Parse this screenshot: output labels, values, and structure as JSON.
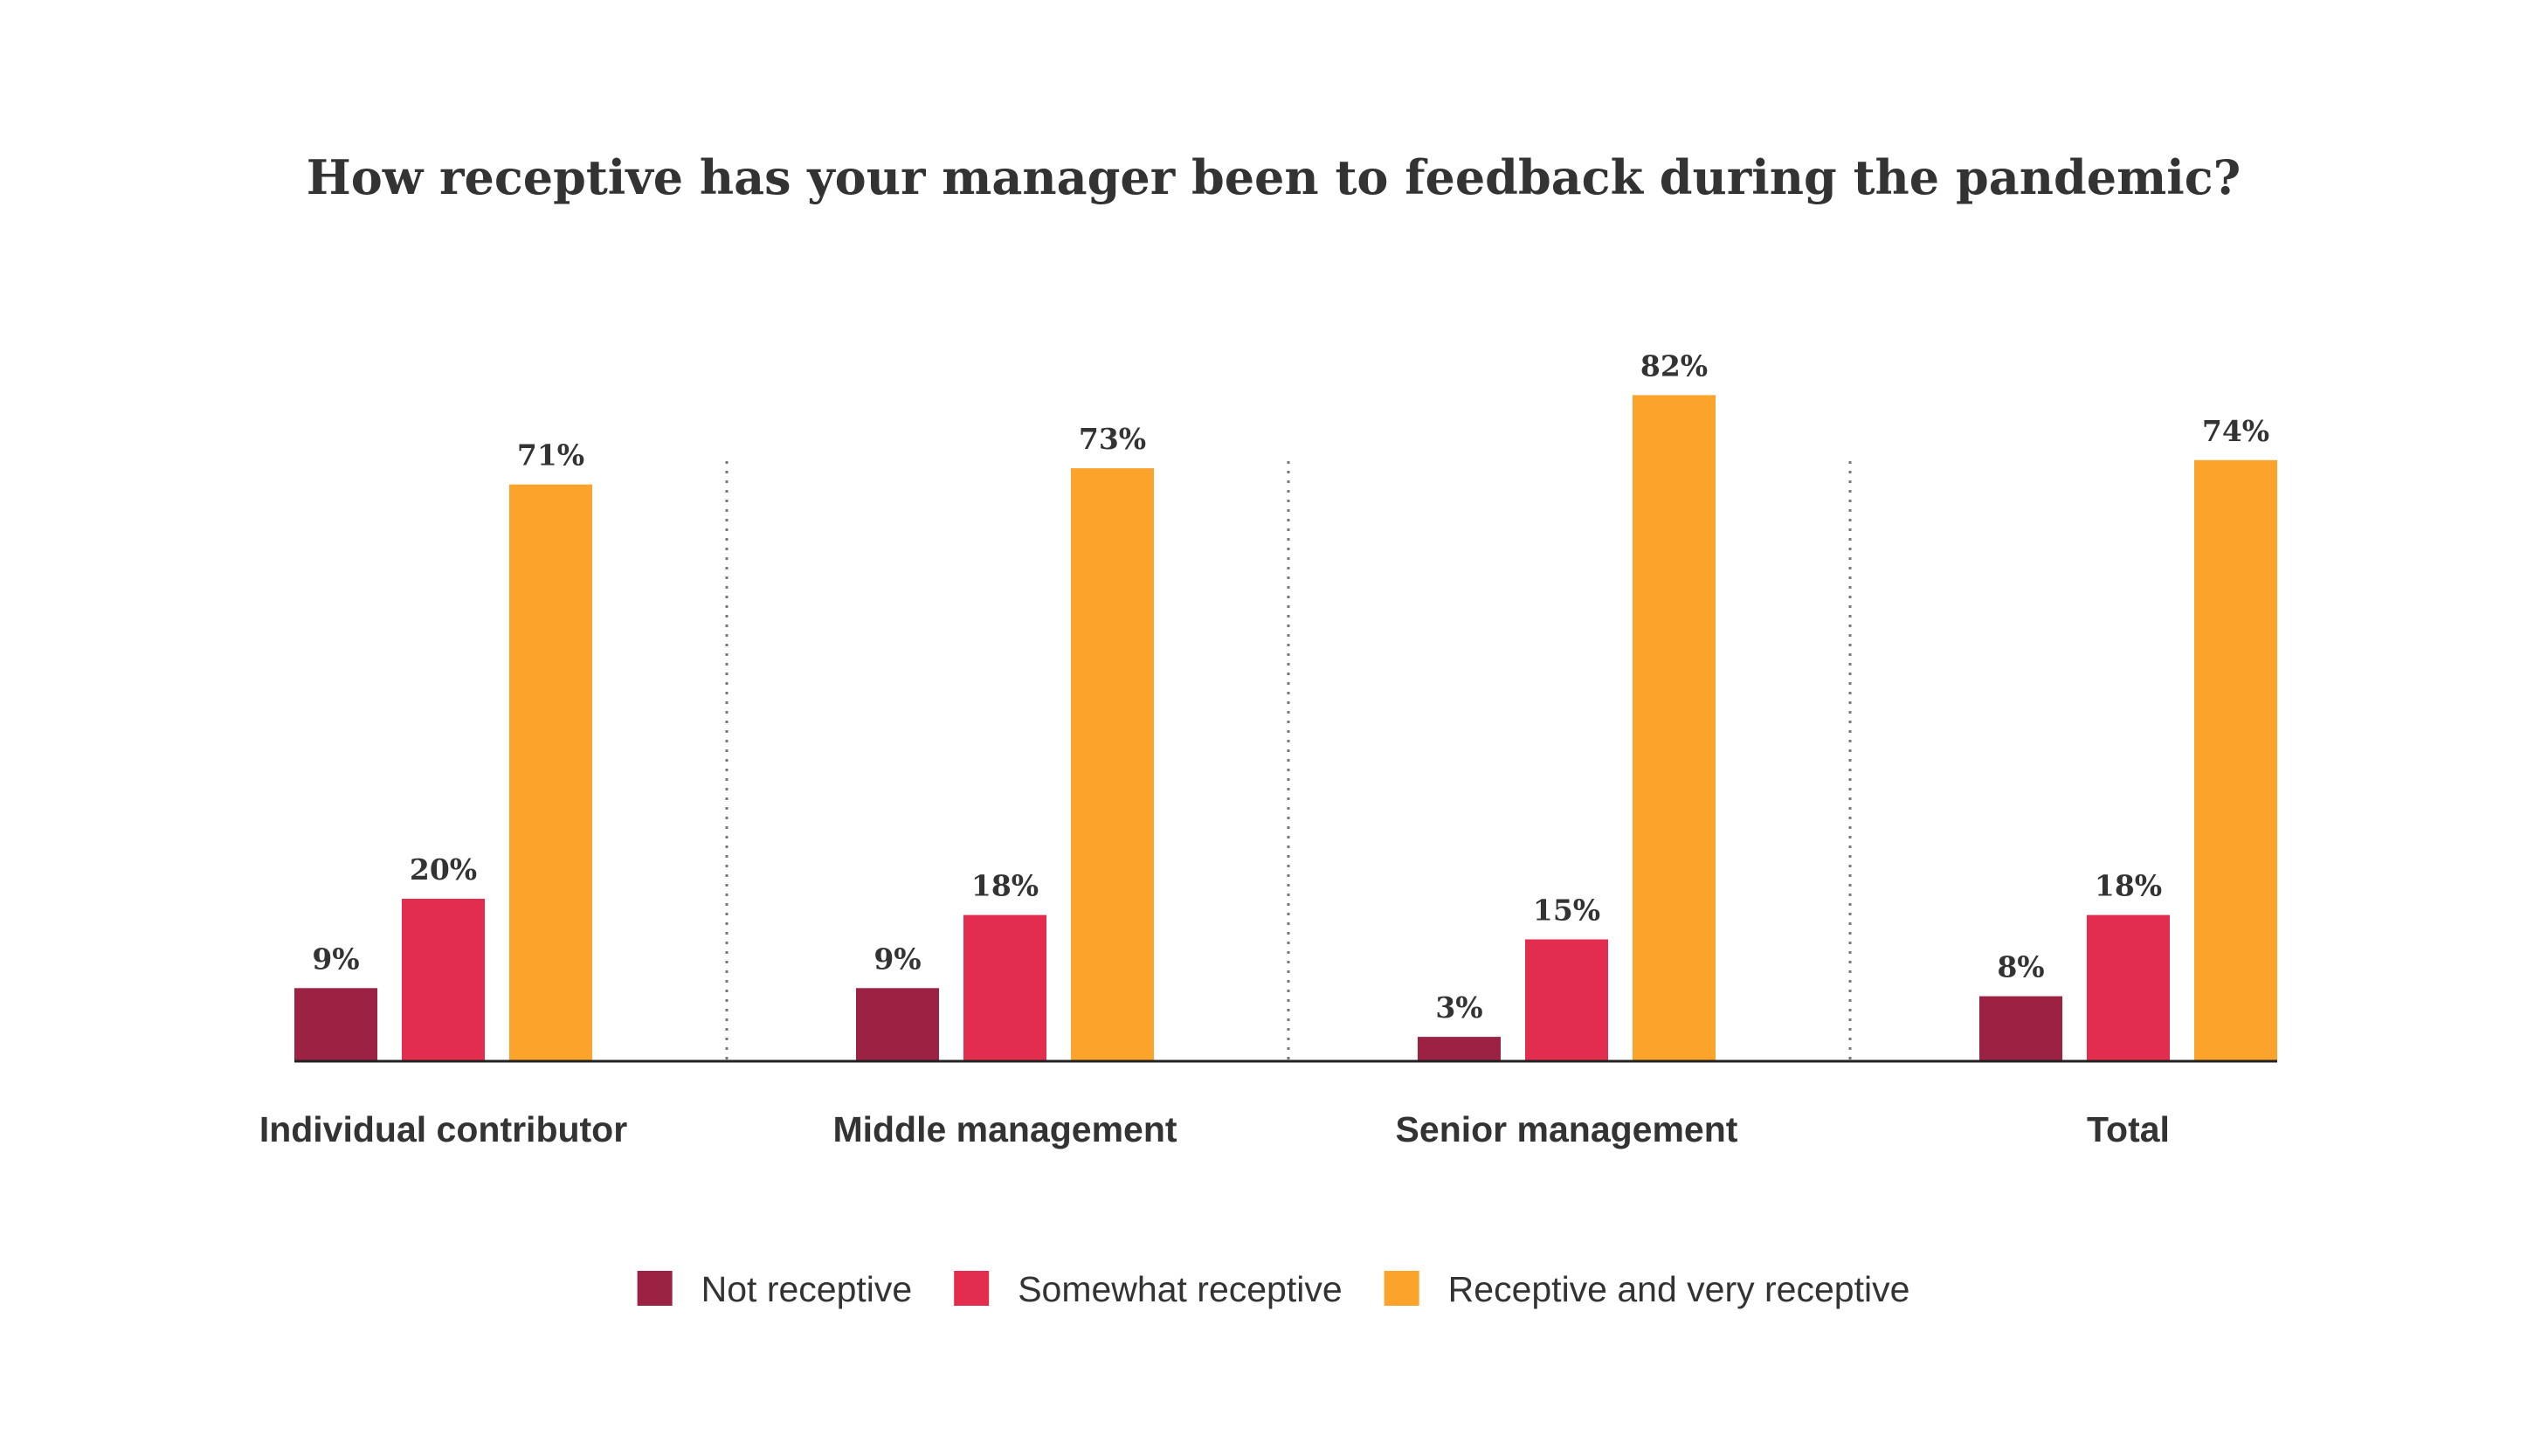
{
  "chart_data": {
    "type": "bar",
    "title": "How receptive has your manager been to feedback during the pandemic?",
    "categories": [
      "Individual contributor",
      "Middle management",
      "Senior management",
      "Total"
    ],
    "series": [
      {
        "name": "Not receptive",
        "color": "#9B2242",
        "values": [
          9,
          9,
          3,
          8
        ],
        "labels": [
          "9%",
          "9%",
          "3%",
          "8%"
        ]
      },
      {
        "name": "Somewhat receptive",
        "color": "#E32D4F",
        "values": [
          20,
          18,
          15,
          18
        ],
        "labels": [
          "20%",
          "18%",
          "15%",
          "18%"
        ]
      },
      {
        "name": "Receptive and very receptive",
        "color": "#FBA32B",
        "values": [
          71,
          73,
          82,
          74
        ],
        "labels": [
          "71%",
          "73%",
          "82%",
          "74%"
        ]
      }
    ],
    "ylim": [
      0,
      100
    ],
    "xlabel": "",
    "ylabel": "",
    "grid": false,
    "group_separators": "dotted",
    "legend_position": "bottom-center"
  }
}
